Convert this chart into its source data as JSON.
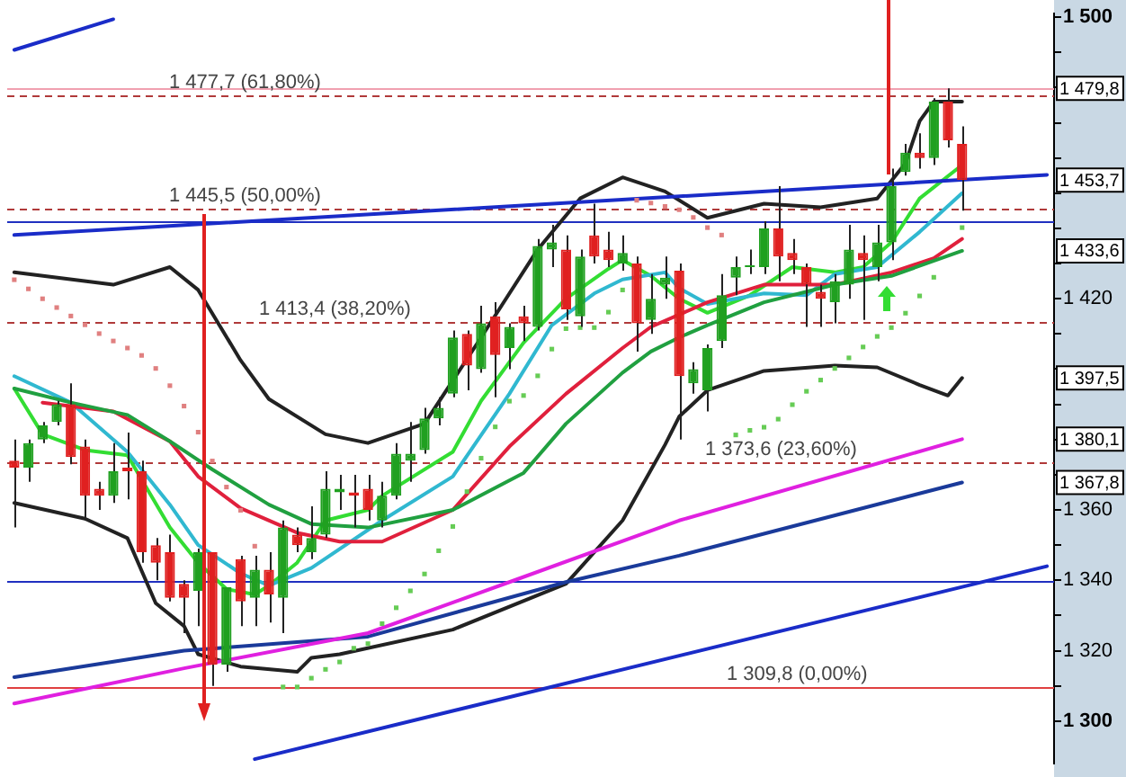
{
  "chart_data": {
    "type": "candlestick",
    "categories": [
      null,
      null,
      null,
      null,
      null,
      null,
      null,
      null,
      null,
      null,
      null,
      null,
      null,
      null,
      null,
      null,
      null,
      null,
      null,
      null,
      null,
      null,
      null,
      null,
      null,
      null,
      null,
      null,
      null,
      null,
      null,
      null,
      null,
      null,
      null,
      null,
      null,
      null,
      null,
      null,
      null,
      null,
      null,
      null,
      null,
      null,
      null,
      null,
      null,
      null,
      null,
      null,
      null,
      null,
      null,
      null,
      null,
      null,
      null,
      null,
      null,
      null,
      null,
      null,
      null,
      null,
      null,
      null,
      null,
      null,
      null,
      null,
      null,
      null
    ],
    "ohlc": [
      [
        1374,
        1380,
        1355,
        1372
      ],
      [
        1372,
        1380,
        1368,
        1379
      ],
      [
        1380,
        1385,
        1379,
        1384
      ],
      [
        1385,
        1391,
        1384,
        1390
      ],
      [
        1390,
        1396,
        1373,
        1375
      ],
      [
        1378,
        1380,
        1357,
        1364
      ],
      [
        1366,
        1368,
        1360,
        1364
      ],
      [
        1364,
        1379,
        1362,
        1371
      ],
      [
        1372,
        1382,
        1363,
        1371
      ],
      [
        1371,
        1374,
        1345,
        1348
      ],
      [
        1350,
        1352,
        1340,
        1345
      ],
      [
        1348,
        1353,
        1334,
        1335
      ],
      [
        1339,
        1340,
        1325,
        1335
      ],
      [
        1337,
        1349,
        1327,
        1348
      ],
      [
        1348,
        1348,
        1310,
        1316
      ],
      [
        1316,
        1338,
        1314,
        1338
      ],
      [
        1346,
        1347,
        1327,
        1334
      ],
      [
        1335,
        1347,
        1327,
        1343
      ],
      [
        1343,
        1348,
        1328,
        1336
      ],
      [
        1335,
        1357,
        1325,
        1355
      ],
      [
        1353,
        1355,
        1348,
        1350
      ],
      [
        1348,
        1361,
        1346,
        1352
      ],
      [
        1353,
        1371,
        1352,
        1366
      ],
      [
        1365,
        1370,
        1360,
        1366
      ],
      [
        1365,
        1370,
        1355,
        1364
      ],
      [
        1366,
        1370,
        1357,
        1360
      ],
      [
        1357,
        1368,
        1355,
        1364
      ],
      [
        1364,
        1379,
        1363,
        1376
      ],
      [
        1374,
        1385,
        1368,
        1376
      ],
      [
        1377,
        1389,
        1376,
        1386
      ],
      [
        1386,
        1392,
        1384,
        1389
      ],
      [
        1393,
        1411,
        1392,
        1409
      ],
      [
        1410,
        1411,
        1394,
        1401
      ],
      [
        1400,
        1418,
        1399,
        1413
      ],
      [
        1415,
        1419,
        1392,
        1404
      ],
      [
        1406,
        1413,
        1400,
        1412
      ],
      [
        1415,
        1418,
        1408,
        1413
      ],
      [
        1412,
        1437,
        1411,
        1435
      ],
      [
        1434,
        1441,
        1429,
        1436
      ],
      [
        1434,
        1438,
        1414,
        1417
      ],
      [
        1415,
        1434,
        1412,
        1432
      ],
      [
        1438,
        1447,
        1430,
        1432
      ],
      [
        1434,
        1439,
        1429,
        1431
      ],
      [
        1430,
        1438,
        1428,
        1433
      ],
      [
        1430,
        1432,
        1405,
        1413
      ],
      [
        1414,
        1427,
        1410,
        1420
      ],
      [
        1424,
        1432,
        1420,
        1426
      ],
      [
        1428,
        1430,
        1380,
        1398
      ],
      [
        1396,
        1402,
        1393,
        1400
      ],
      [
        1394,
        1407,
        1388,
        1406
      ],
      [
        1408,
        1427,
        1406,
        1421
      ],
      [
        1426,
        1432,
        1421,
        1429
      ],
      [
        1429,
        1434,
        1427,
        1429.5
      ],
      [
        1429,
        1442,
        1427,
        1440
      ],
      [
        1440,
        1452,
        1425,
        1432
      ],
      [
        1433,
        1437,
        1427,
        1431
      ],
      [
        1429,
        1430,
        1412,
        1424
      ],
      [
        1422,
        1424,
        1412,
        1420
      ],
      [
        1419,
        1427,
        1413,
        1425
      ],
      [
        1424,
        1441,
        1420,
        1434
      ],
      [
        1433,
        1438,
        1414,
        1431
      ],
      [
        1429,
        1441,
        1425,
        1436
      ],
      [
        1436,
        1457,
        1431,
        1452
      ],
      [
        1456,
        1464,
        1455,
        1461.5
      ],
      [
        1461.5,
        1467,
        1457,
        1460
      ],
      [
        1460,
        1477,
        1458,
        1476
      ],
      [
        1476,
        1479.8,
        1463,
        1465
      ],
      [
        1464,
        1469,
        1445,
        1453.7
      ],
      null,
      null,
      null,
      null,
      null,
      null
    ],
    "colors": [
      "#e02020",
      "#20a020",
      "#20a020",
      "#20a020",
      "#e02020",
      "#e02020",
      "#e02020",
      "#20a020",
      "#e02020",
      "#e02020",
      "#e02020",
      "#e02020",
      "#e02020",
      "#20a020",
      "#e02020",
      "#20a020",
      "#e02020",
      "#20a020",
      "#e02020",
      "#20a020",
      "#e02020",
      "#20a020",
      "#20a020",
      "#20a020",
      "#e02020",
      "#e02020",
      "#20a020",
      "#20a020",
      "#20a020",
      "#20a020",
      "#20a020",
      "#20a020",
      "#e02020",
      "#20a020",
      "#e02020",
      "#20a020",
      "#e02020",
      "#20a020",
      "#20a020",
      "#e02020",
      "#20a020",
      "#e02020",
      "#e02020",
      "#20a020",
      "#e02020",
      "#20a020",
      "#20a020",
      "#e02020",
      "#20a020",
      "#20a020",
      "#20a020",
      "#20a020",
      "#20a020",
      "#20a020",
      "#e02020",
      "#e02020",
      "#e02020",
      "#e02020",
      "#20a020",
      "#20a020",
      "#e02020",
      "#20a020",
      "#20a020",
      "#20a020",
      "#e02020",
      "#20a020",
      "#e02020",
      "#e02020",
      null,
      null,
      null,
      null,
      null,
      null
    ],
    "series": [
      {
        "type": "line",
        "color": "#1a2cc8",
        "values": [
          1438.1,
          null,
          null,
          null,
          null,
          null,
          null,
          null,
          null,
          null,
          null,
          null,
          null,
          null,
          null,
          null,
          null,
          null,
          null,
          null,
          null,
          null,
          null,
          null,
          null,
          null,
          null,
          null,
          null,
          null,
          null,
          null,
          null,
          null,
          null,
          null,
          null,
          null,
          null,
          null,
          null,
          null,
          null,
          null,
          null,
          null,
          null,
          null,
          null,
          null,
          null,
          null,
          null,
          null,
          null,
          null,
          null,
          null,
          null,
          null,
          null,
          null,
          null,
          null,
          null,
          null,
          null,
          null,
          null,
          null,
          null,
          null,
          null,
          1455.2
        ]
      },
      {
        "type": "line",
        "color": "#1a2cc8",
        "values": [
          null,
          null,
          null,
          null,
          null,
          null,
          null,
          null,
          null,
          null,
          null,
          null,
          null,
          null,
          null,
          null,
          null,
          1289.2,
          null,
          null,
          null,
          null,
          null,
          null,
          null,
          null,
          null,
          null,
          null,
          null,
          null,
          null,
          null,
          null,
          null,
          null,
          null,
          null,
          null,
          null,
          null,
          null,
          null,
          null,
          null,
          null,
          null,
          null,
          null,
          null,
          null,
          null,
          null,
          null,
          null,
          null,
          null,
          null,
          null,
          null,
          null,
          null,
          null,
          null,
          null,
          null,
          null,
          null,
          null,
          null,
          null,
          null,
          null,
          1344
        ]
      },
      {
        "type": "line",
        "color": "#1a2cc8",
        "values": [
          1490.7,
          null,
          null,
          null,
          null,
          null,
          null,
          1499.4,
          null,
          null,
          null,
          null,
          null,
          null,
          null,
          null,
          null,
          null,
          null,
          null,
          null,
          null,
          null,
          null,
          null,
          null,
          null,
          null,
          null,
          null,
          null,
          null,
          null,
          null,
          null,
          null,
          null,
          null,
          null,
          null,
          null,
          null,
          null,
          null,
          null,
          null,
          null,
          null,
          null,
          null,
          null,
          null,
          null,
          null,
          null,
          null,
          null,
          null,
          null,
          null,
          null,
          null,
          null,
          null,
          null,
          null,
          null,
          null,
          null,
          null,
          null,
          null,
          null,
          null
        ]
      },
      {
        "type": "line",
        "color": "#e020e0",
        "values": [
          1305,
          null,
          null,
          null,
          null,
          null,
          null,
          null,
          null,
          null,
          null,
          null,
          1315,
          null,
          null,
          null,
          null,
          null,
          null,
          null,
          null,
          null,
          null,
          null,
          null,
          1325,
          null,
          null,
          null,
          null,
          null,
          null,
          null,
          null,
          null,
          1339.5,
          null,
          null,
          null,
          null,
          null,
          null,
          null,
          null,
          null,
          null,
          null,
          1357,
          null,
          null,
          null,
          null,
          null,
          null,
          null,
          null,
          null,
          null,
          null,
          null,
          null,
          null,
          null,
          null,
          null,
          null,
          null,
          1380.1,
          null,
          null,
          null,
          null,
          null,
          null
        ]
      },
      {
        "type": "line",
        "color": "#1a3a9a",
        "values": [
          1312.5,
          null,
          null,
          null,
          null,
          null,
          null,
          null,
          null,
          null,
          null,
          null,
          1320,
          null,
          null,
          null,
          null,
          null,
          null,
          null,
          null,
          null,
          null,
          null,
          null,
          1324,
          null,
          null,
          null,
          null,
          null,
          null,
          null,
          null,
          null,
          null,
          null,
          null,
          null,
          1339.5,
          null,
          null,
          null,
          null,
          null,
          null,
          null,
          1347,
          null,
          null,
          null,
          null,
          null,
          null,
          null,
          null,
          null,
          null,
          null,
          null,
          null,
          null,
          null,
          null,
          null,
          null,
          null,
          1367.8,
          null,
          null,
          null,
          null,
          null,
          null
        ]
      },
      {
        "type": "line",
        "color": "#222222",
        "values": [
          1427.5,
          null,
          null,
          null,
          null,
          null,
          null,
          1424,
          null,
          null,
          null,
          1429,
          null,
          1422.5,
          null,
          null,
          1402.5,
          null,
          1391.5,
          null,
          null,
          null,
          1381.5,
          null,
          null,
          1379,
          null,
          null,
          null,
          1384.5,
          null,
          null,
          null,
          1409,
          null,
          null,
          null,
          1434,
          null,
          null,
          1448.5,
          null,
          null,
          1454.5,
          null,
          null,
          1450.5,
          null,
          null,
          1443,
          null,
          null,
          null,
          1447,
          null,
          null,
          null,
          1446,
          null,
          null,
          null,
          1448.5,
          null,
          1458.5,
          1470.5,
          1476,
          null,
          1476,
          null,
          null,
          null,
          null,
          null,
          null
        ]
      },
      {
        "type": "line",
        "color": "#222222",
        "values": [
          1362,
          null,
          null,
          null,
          null,
          1357.5,
          null,
          null,
          1352,
          null,
          1333.5,
          null,
          1327,
          1319,
          null,
          null,
          1315.5,
          null,
          null,
          null,
          1314,
          1318,
          null,
          1319,
          null,
          null,
          null,
          null,
          null,
          null,
          null,
          1326,
          null,
          null,
          null,
          null,
          null,
          null,
          null,
          1339,
          1343.5,
          null,
          null,
          1357,
          null,
          null,
          1378.5,
          1386.5,
          null,
          1394,
          null,
          null,
          null,
          1399.5,
          null,
          null,
          null,
          null,
          1401,
          null,
          null,
          1400.5,
          null,
          null,
          1395.5,
          null,
          1392.5,
          1397.5,
          null,
          null,
          null,
          null,
          null,
          null
        ]
      },
      {
        "type": "line",
        "color": "#20a040",
        "values": [
          1394.5,
          null,
          null,
          null,
          1390.5,
          null,
          null,
          null,
          1387,
          null,
          null,
          1379.5,
          null,
          null,
          1371.5,
          null,
          null,
          null,
          1361.5,
          null,
          null,
          1356,
          null,
          null,
          null,
          1355,
          null,
          null,
          null,
          null,
          null,
          1360,
          null,
          null,
          null,
          null,
          1370.5,
          null,
          null,
          1384.5,
          null,
          null,
          null,
          1399,
          null,
          1405,
          null,
          1409,
          null,
          1412.5,
          null,
          null,
          null,
          1419,
          null,
          null,
          null,
          null,
          1424,
          null,
          null,
          null,
          1426.5,
          null,
          null,
          null,
          null,
          1433.6,
          null,
          null,
          null,
          null,
          null,
          null
        ]
      },
      {
        "type": "line",
        "color": "#e0203c",
        "values": [
          null,
          null,
          1390.5,
          null,
          null,
          null,
          null,
          1388,
          null,
          null,
          null,
          1379.5,
          null,
          1369.5,
          null,
          null,
          1360.5,
          null,
          null,
          null,
          1353.5,
          null,
          null,
          1351,
          null,
          null,
          1351,
          null,
          null,
          null,
          null,
          1360,
          null,
          null,
          null,
          1378,
          null,
          null,
          null,
          1393,
          null,
          null,
          null,
          1406,
          null,
          1412,
          null,
          null,
          null,
          1419,
          null,
          null,
          null,
          1424,
          null,
          null,
          null,
          null,
          1424,
          null,
          null,
          null,
          1427.5,
          null,
          null,
          1431.5,
          null,
          1437,
          null,
          null,
          null,
          null,
          null,
          null
        ]
      },
      {
        "type": "line",
        "color": "#30b8d0",
        "values": [
          1398,
          null,
          null,
          null,
          1390.5,
          null,
          null,
          null,
          1376.5,
          null,
          null,
          1361.5,
          null,
          1350,
          null,
          null,
          1342,
          null,
          1338.5,
          null,
          null,
          1343.5,
          null,
          null,
          null,
          null,
          1357,
          null,
          null,
          null,
          null,
          1369.5,
          null,
          null,
          null,
          1393,
          null,
          null,
          1412.5,
          null,
          null,
          1421.5,
          null,
          1425.5,
          null,
          null,
          1427.5,
          1423,
          null,
          1418.5,
          null,
          null,
          null,
          1421.5,
          null,
          null,
          1421,
          null,
          1427,
          null,
          null,
          1429,
          null,
          null,
          1439,
          null,
          null,
          1450,
          null,
          null,
          null,
          null,
          null,
          null
        ]
      },
      {
        "type": "line",
        "color": "#33dd33",
        "values": [
          1394.5,
          null,
          1381.5,
          null,
          null,
          1377,
          null,
          null,
          1375.5,
          null,
          null,
          1355,
          null,
          1345,
          null,
          1337.5,
          null,
          1336,
          1338.5,
          null,
          1345,
          null,
          1357,
          null,
          null,
          1360,
          1364,
          null,
          null,
          null,
          null,
          1376.5,
          null,
          1391,
          null,
          null,
          1407.5,
          null,
          null,
          1420,
          null,
          null,
          1428.5,
          1431,
          null,
          1426.5,
          null,
          1420,
          null,
          1416,
          null,
          null,
          1421,
          null,
          null,
          1429,
          null,
          null,
          1427.5,
          null,
          1429,
          null,
          1436,
          null,
          1448.5,
          null,
          null,
          1458,
          null,
          null,
          null,
          null,
          null,
          null
        ]
      },
      {
        "type": "scatter",
        "marker": "square",
        "color": "#e08080",
        "values": [
          1425.4,
          1422.8,
          1420,
          1417.5,
          1415.1,
          1412.6,
          1410.1,
          1408,
          1406,
          1403.9,
          1400.2,
          1395.3,
          1389.5,
          1382.1,
          1373.9,
          1366.5,
          1359.9,
          1349.7,
          null,
          null,
          null,
          null,
          null,
          null,
          null,
          null,
          null,
          null,
          null,
          null,
          null,
          null,
          null,
          null,
          null,
          null,
          null,
          null,
          null,
          null,
          null,
          null,
          null,
          null,
          1448,
          1447.2,
          1446.2,
          1445.3,
          1443.1,
          1440.2,
          1438.1,
          null,
          null,
          null,
          null,
          null,
          null,
          null,
          null,
          null,
          null,
          null,
          null,
          null,
          null,
          null,
          null,
          null,
          null,
          null,
          null,
          null,
          null,
          null
        ]
      },
      {
        "type": "scatter",
        "marker": "square",
        "color": "#66cc55",
        "values": [
          null,
          null,
          null,
          null,
          null,
          null,
          null,
          null,
          null,
          null,
          null,
          null,
          null,
          null,
          null,
          null,
          null,
          null,
          null,
          1309.7,
          1309.7,
          1312.2,
          1314.7,
          1316.8,
          1320.7,
          1322,
          1327.7,
          1332.2,
          1337,
          1341.8,
          1348.4,
          1355.3,
          1365.2,
          1374.7,
          1383.6,
          1390.9,
          1392.5,
          1398.1,
          1405.7,
          1411.5,
          1411.8,
          1411.8,
          1416.2,
          1422.5,
          null,
          null,
          null,
          null,
          null,
          null,
          null,
          1381.3,
          1382.6,
          1383.5,
          1385.8,
          1389.9,
          1393.7,
          1396.9,
          1400.2,
          1403.2,
          1406.3,
          1409.3,
          1411.8,
          1415.9,
          1420.8,
          1426.1,
          null,
          1440.2,
          null,
          null,
          null,
          null,
          null,
          null
        ]
      }
    ],
    "ylim": [
      1288,
      1501
    ],
    "yticks": [
      {
        "value": 1300,
        "label": "1 300"
      },
      {
        "value": 1310,
        "label": null
      },
      {
        "value": 1320,
        "label": "1 320"
      },
      {
        "value": 1330,
        "label": null
      },
      {
        "value": 1340,
        "label": "1 340"
      },
      {
        "value": 1350,
        "label": null
      },
      {
        "value": 1360,
        "label": "1 360"
      },
      {
        "value": 1370,
        "label": null
      },
      {
        "value": 1380,
        "label": null
      },
      {
        "value": 1390,
        "label": null
      },
      {
        "value": 1400,
        "label": null
      },
      {
        "value": 1410,
        "label": null
      },
      {
        "value": 1420,
        "label": "1 420"
      },
      {
        "value": 1430,
        "label": null
      },
      {
        "value": 1440,
        "label": null
      },
      {
        "value": 1450,
        "label": null
      },
      {
        "value": 1460,
        "label": null
      },
      {
        "value": 1470,
        "label": null
      },
      {
        "value": 1480,
        "label": null
      },
      {
        "value": 1490,
        "label": null
      },
      {
        "value": 1500,
        "label": "1 500"
      }
    ],
    "ref_lines": [
      {
        "axis": "y",
        "value": 1479.8,
        "color": "#f0a0b0"
      },
      {
        "axis": "y",
        "value": 1477.7,
        "label": "1 477,7 (61,80%)",
        "color": "#b03a3a",
        "line_style": "dashed"
      },
      {
        "axis": "y",
        "value": 1445.5,
        "label": "1 445,5 (50,00%)",
        "color": "#b03a3a",
        "line_style": "dashed"
      },
      {
        "axis": "y",
        "value": 1442.2,
        "color": "#2030c0"
      },
      {
        "axis": "y",
        "value": 1413.4,
        "label": "1 413,4 (38,20%)",
        "color": "#b03a3a",
        "line_style": "dashed"
      },
      {
        "axis": "y",
        "value": 1373.6,
        "label": "1 373,6 (23,60%)",
        "color": "#b03a3a",
        "line_style": "dashed"
      },
      {
        "axis": "y",
        "value": 1340,
        "color": "#2030c0"
      },
      {
        "axis": "y",
        "value": 1309.8,
        "label": "1 309,8 (0,00%)",
        "color": "#e04040"
      }
    ],
    "annotations": [
      {
        "text": "1 479,8",
        "y": 1479.8
      },
      {
        "text": "1 453,7",
        "y": 1453.7
      },
      {
        "text": "1 433,6",
        "y": 1433.6
      },
      {
        "text": "1 397,5",
        "y": 1397.5
      },
      {
        "text": "1 380,1",
        "y": 1380.1
      },
      {
        "text": "1 367,8",
        "y": 1367.8
      }
    ]
  }
}
